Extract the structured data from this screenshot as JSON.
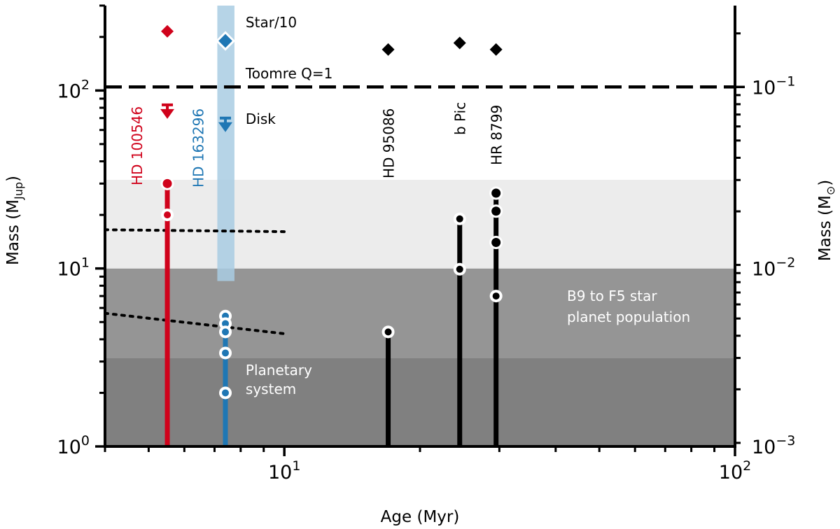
{
  "chart_data": {
    "type": "scatter",
    "xlabel": "Age (Myr)",
    "ylabel": "Mass (M",
    "ylabel_sub": "Jup",
    "ylabel_end": ")",
    "y2label": "Mass (M",
    "y2label_sub": "⊙",
    "y2label_end": ")",
    "xscale": "log",
    "yscale": "log",
    "xlim": [
      4,
      100
    ],
    "ylim": [
      1,
      300
    ],
    "x_ticks": [
      {
        "value": 10,
        "base": "10",
        "exp": "1"
      },
      {
        "value": 100,
        "base": "10",
        "exp": "2"
      }
    ],
    "y_ticks": [
      {
        "value": 1,
        "base": "10",
        "exp": "0"
      },
      {
        "value": 10,
        "base": "10",
        "exp": "1"
      },
      {
        "value": 100,
        "base": "10",
        "exp": "2"
      }
    ],
    "y2_ticks": [
      {
        "value": 1.0,
        "base": "10",
        "exp": "−3"
      },
      {
        "value": 10.0,
        "base": "10",
        "exp": "−2"
      },
      {
        "value": 104.7,
        "base": "10",
        "exp": "−1"
      }
    ],
    "shaded_regions": [
      {
        "y_range": [
          1,
          3.15
        ],
        "color": "#808080"
      },
      {
        "y_range": [
          3.15,
          10
        ],
        "color": "#959595"
      },
      {
        "y_range": [
          10,
          31.5
        ],
        "color": "#ececec"
      }
    ],
    "toomre_q": {
      "y": 104.7,
      "label": "Toomre Q=1"
    },
    "dotted_lines": [
      {
        "x": [
          4,
          10
        ],
        "y": [
          16.5,
          16.1
        ]
      },
      {
        "x": [
          4,
          10
        ],
        "y": [
          5.6,
          4.3
        ]
      }
    ],
    "disk_band": {
      "x_range": [
        7.1,
        7.75
      ],
      "y_range": [
        8.5,
        300
      ],
      "color": "#a9cce3",
      "alpha_label": "Disk"
    },
    "systems": [
      {
        "name": "HD 100546",
        "age": 5.5,
        "color": "#d0021b",
        "star_over_10": 215,
        "disk_upper_limit": 83,
        "planets": [
          {
            "mass": 30,
            "style": "solid"
          },
          {
            "mass": 20,
            "style": "ring"
          }
        ],
        "bar_top": 30
      },
      {
        "name": "HD 163296",
        "age": 7.4,
        "color": "#1f77b4",
        "star_over_10": 190,
        "disk_upper_limit": 70,
        "planets": [
          {
            "mass": 5.4,
            "style": "ring"
          },
          {
            "mass": 4.9,
            "style": "ring"
          },
          {
            "mass": 4.4,
            "style": "ring"
          },
          {
            "mass": 3.35,
            "style": "ring"
          },
          {
            "mass": 2.0,
            "style": "ring"
          }
        ],
        "bar_top": 5.4
      },
      {
        "name": "HD 95086",
        "age": 17,
        "color": "#000000",
        "star_over_10": 170,
        "planets": [
          {
            "mass": 4.4,
            "style": "ring"
          }
        ],
        "bar_top": 4.4
      },
      {
        "name": "b Pic",
        "age": 24.5,
        "color": "#000000",
        "star_over_10": 185,
        "planets": [
          {
            "mass": 19,
            "style": "ring"
          },
          {
            "mass": 9.9,
            "style": "ring"
          }
        ],
        "bar_top": 19
      },
      {
        "name": "HR 8799",
        "age": 29.5,
        "color": "#000000",
        "star_over_10": 170,
        "planets": [
          {
            "mass": 26.5,
            "style": "solid"
          },
          {
            "mass": 21,
            "style": "solid"
          },
          {
            "mass": 14,
            "style": "solid"
          },
          {
            "mass": 7,
            "style": "ring"
          }
        ],
        "bar_top": 26.5
      }
    ],
    "annotations": {
      "star": "Star/10",
      "disk": "Disk",
      "planetary_system_line1": "Planetary",
      "planetary_system_line2": "system",
      "population_line1": "B9 to F5 star",
      "population_line2": "planet population"
    }
  }
}
